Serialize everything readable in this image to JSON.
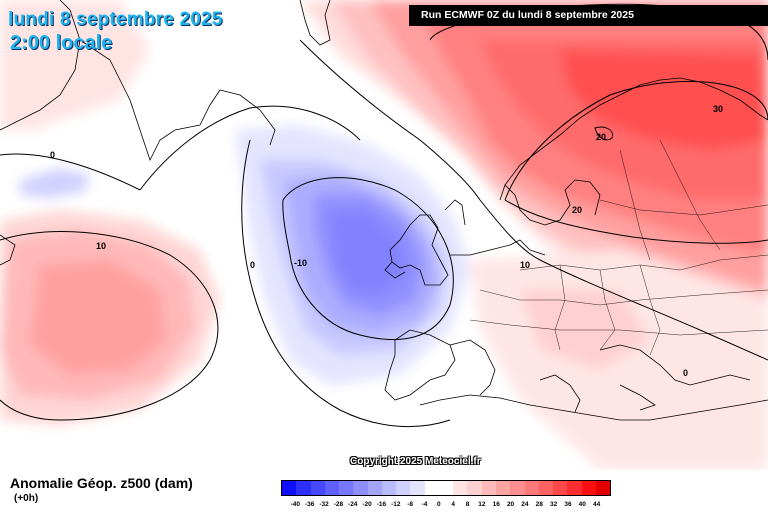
{
  "header": {
    "date": "lundi 8 septembre 2025",
    "time": "2:00 locale",
    "run": "Run ECMWF 0Z du lundi 8 septembre 2025"
  },
  "copyright": "Copyright 2025 Meteociel.fr",
  "footer": {
    "title": "Anomalie Géop. z500 (dam)",
    "subtitle": "(+0h)"
  },
  "legend": {
    "colors": [
      "#1010ff",
      "#2e2eff",
      "#4848ff",
      "#6060ff",
      "#7878ff",
      "#8e8eff",
      "#a4a4ff",
      "#babaff",
      "#d0d0ff",
      "#e4e4ff",
      "#ffffff",
      "#ffffff",
      "#ffe4e4",
      "#ffd0d0",
      "#ffbaba",
      "#ffa4a4",
      "#ff8e8e",
      "#ff7878",
      "#ff6060",
      "#ff4848",
      "#ff2e2e",
      "#ff1010",
      "#e00000"
    ],
    "labels": [
      "-40",
      "-36",
      "-32",
      "-28",
      "-24",
      "-20",
      "-16",
      "-12",
      "-8",
      "-4",
      "0",
      "4",
      "8",
      "12",
      "16",
      "20",
      "24",
      "28",
      "32",
      "36",
      "40",
      "44"
    ]
  },
  "contour_labels": [
    "30",
    "20",
    "20",
    "10",
    "10",
    "0",
    "-10",
    "0",
    "0"
  ]
}
